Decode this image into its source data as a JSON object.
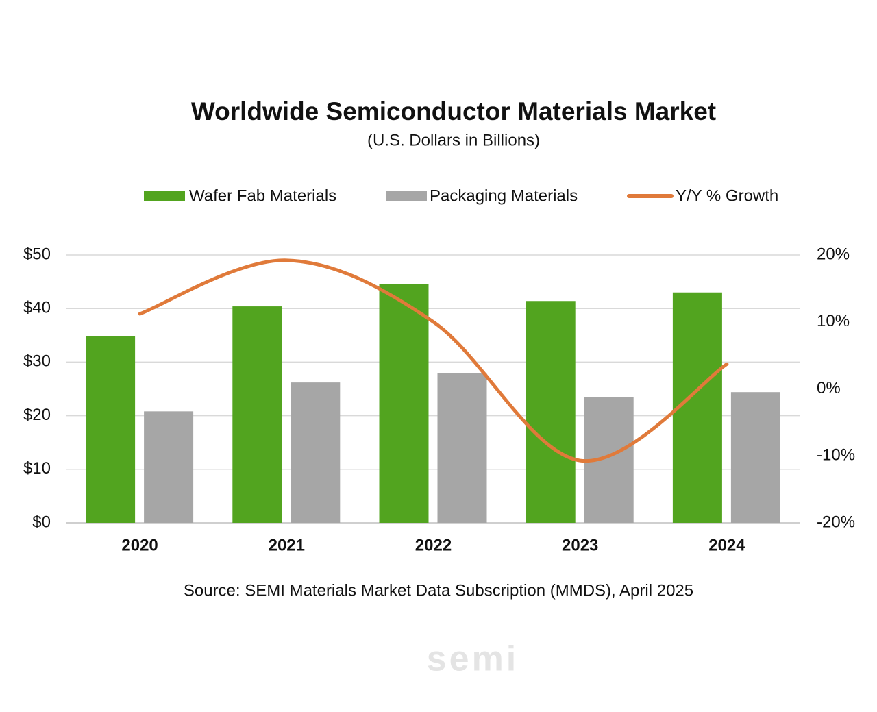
{
  "chart_data": {
    "type": "bar_line",
    "title": "Worldwide Semiconductor Materials Market",
    "subtitle": "(U.S. Dollars in Billions)",
    "categories": [
      "2020",
      "2021",
      "2022",
      "2023",
      "2024"
    ],
    "series": [
      {
        "name": "Wafer Fab Materials",
        "color": "#52a41f",
        "type": "bar",
        "values": [
          34.9,
          40.4,
          44.6,
          41.4,
          43.0
        ]
      },
      {
        "name": "Packaging Materials",
        "color": "#a6a6a6",
        "type": "bar",
        "values": [
          20.8,
          26.2,
          27.9,
          23.4,
          24.4
        ]
      },
      {
        "name": "Y/Y % Growth",
        "color": "#e07a3a",
        "type": "line",
        "axis": "y2",
        "values": [
          11.2,
          19.2,
          10.0,
          -10.7,
          3.7
        ]
      }
    ],
    "ylim": [
      0,
      50
    ],
    "yticks": [
      {
        "value": 0,
        "label": "$0"
      },
      {
        "value": 10,
        "label": "$10"
      },
      {
        "value": 20,
        "label": "$20"
      },
      {
        "value": 30,
        "label": "$30"
      },
      {
        "value": 40,
        "label": "$40"
      },
      {
        "value": 50,
        "label": "$50"
      }
    ],
    "y2lim": [
      -20,
      20
    ],
    "y2ticks": [
      {
        "value": -20,
        "label": "-20%"
      },
      {
        "value": -10,
        "label": "-10%"
      },
      {
        "value": 0,
        "label": "0%"
      },
      {
        "value": 10,
        "label": "10%"
      },
      {
        "value": 20,
        "label": "20%"
      }
    ],
    "grid": true,
    "legend": "top",
    "source": "Source:  SEMI Materials Market Data Subscription (MMDS), April 2025",
    "watermark": "semi"
  }
}
